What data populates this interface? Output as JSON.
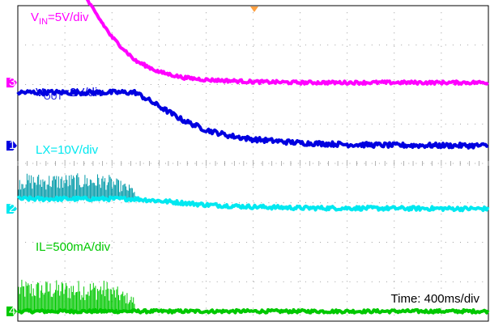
{
  "chart_data": {
    "type": "line",
    "title": "",
    "xlabel": "",
    "ylabel": "",
    "time_label": "Time: 400ms/div",
    "grid": true,
    "x_divisions": 10,
    "y_divisions": 8,
    "x_unit": "div",
    "series": [
      {
        "name": "V_IN",
        "label_main": "V",
        "label_sub": "IN",
        "label_rest": "=5V/div",
        "channel": "3",
        "color": "#ff00ff",
        "ground_div": 6.05,
        "x": [
          0,
          1.4,
          1.6,
          2.0,
          2.5,
          3.0,
          3.5,
          4.0,
          5.0,
          6.0,
          7.0,
          8.0,
          10.0
        ],
        "y_div": [
          2.25,
          2.25,
          1.85,
          1.15,
          0.55,
          0.27,
          0.13,
          0.07,
          0.02,
          0.0,
          0.0,
          0.0,
          0.0
        ],
        "noise": 0.04
      },
      {
        "name": "V_OUT",
        "label_main": "V",
        "label_sub": "OUT",
        "label_rest": "=2V/div",
        "channel": "1",
        "color": "#0000e0",
        "ground_div": 4.45,
        "x": [
          0,
          2.5,
          3.0,
          3.5,
          4.0,
          4.5,
          5.0,
          6.0,
          7.0,
          8.0,
          10.0
        ],
        "y_div": [
          1.35,
          1.35,
          1.0,
          0.65,
          0.4,
          0.25,
          0.16,
          0.07,
          0.03,
          0.01,
          0.0
        ],
        "noise": 0.06
      },
      {
        "name": "LX",
        "label_main": "LX=10V/div",
        "label_sub": "",
        "label_rest": "",
        "channel": "2",
        "color": "#00e8f0",
        "spike_color": "#009aa8",
        "ground_div": 2.85,
        "x": [
          0,
          2.5,
          3.0,
          4.0,
          5.0,
          6.0,
          10.0
        ],
        "y_div": [
          0.25,
          0.25,
          0.2,
          0.1,
          0.05,
          0.02,
          0.0
        ],
        "noise": 0.05,
        "switching_end": 2.5,
        "spike_height": 0.65
      },
      {
        "name": "IL",
        "label_main": "IL=500mA/div",
        "label_sub": "",
        "label_rest": "",
        "channel": "4",
        "color": "#00c800",
        "ground_div": 0.25,
        "x": [
          0,
          2.5,
          2.6,
          10.0
        ],
        "y_div": [
          0.0,
          0.0,
          0.0,
          0.0
        ],
        "noise": 0.04,
        "switching_end": 2.5,
        "spike_height": 0.8
      }
    ]
  }
}
